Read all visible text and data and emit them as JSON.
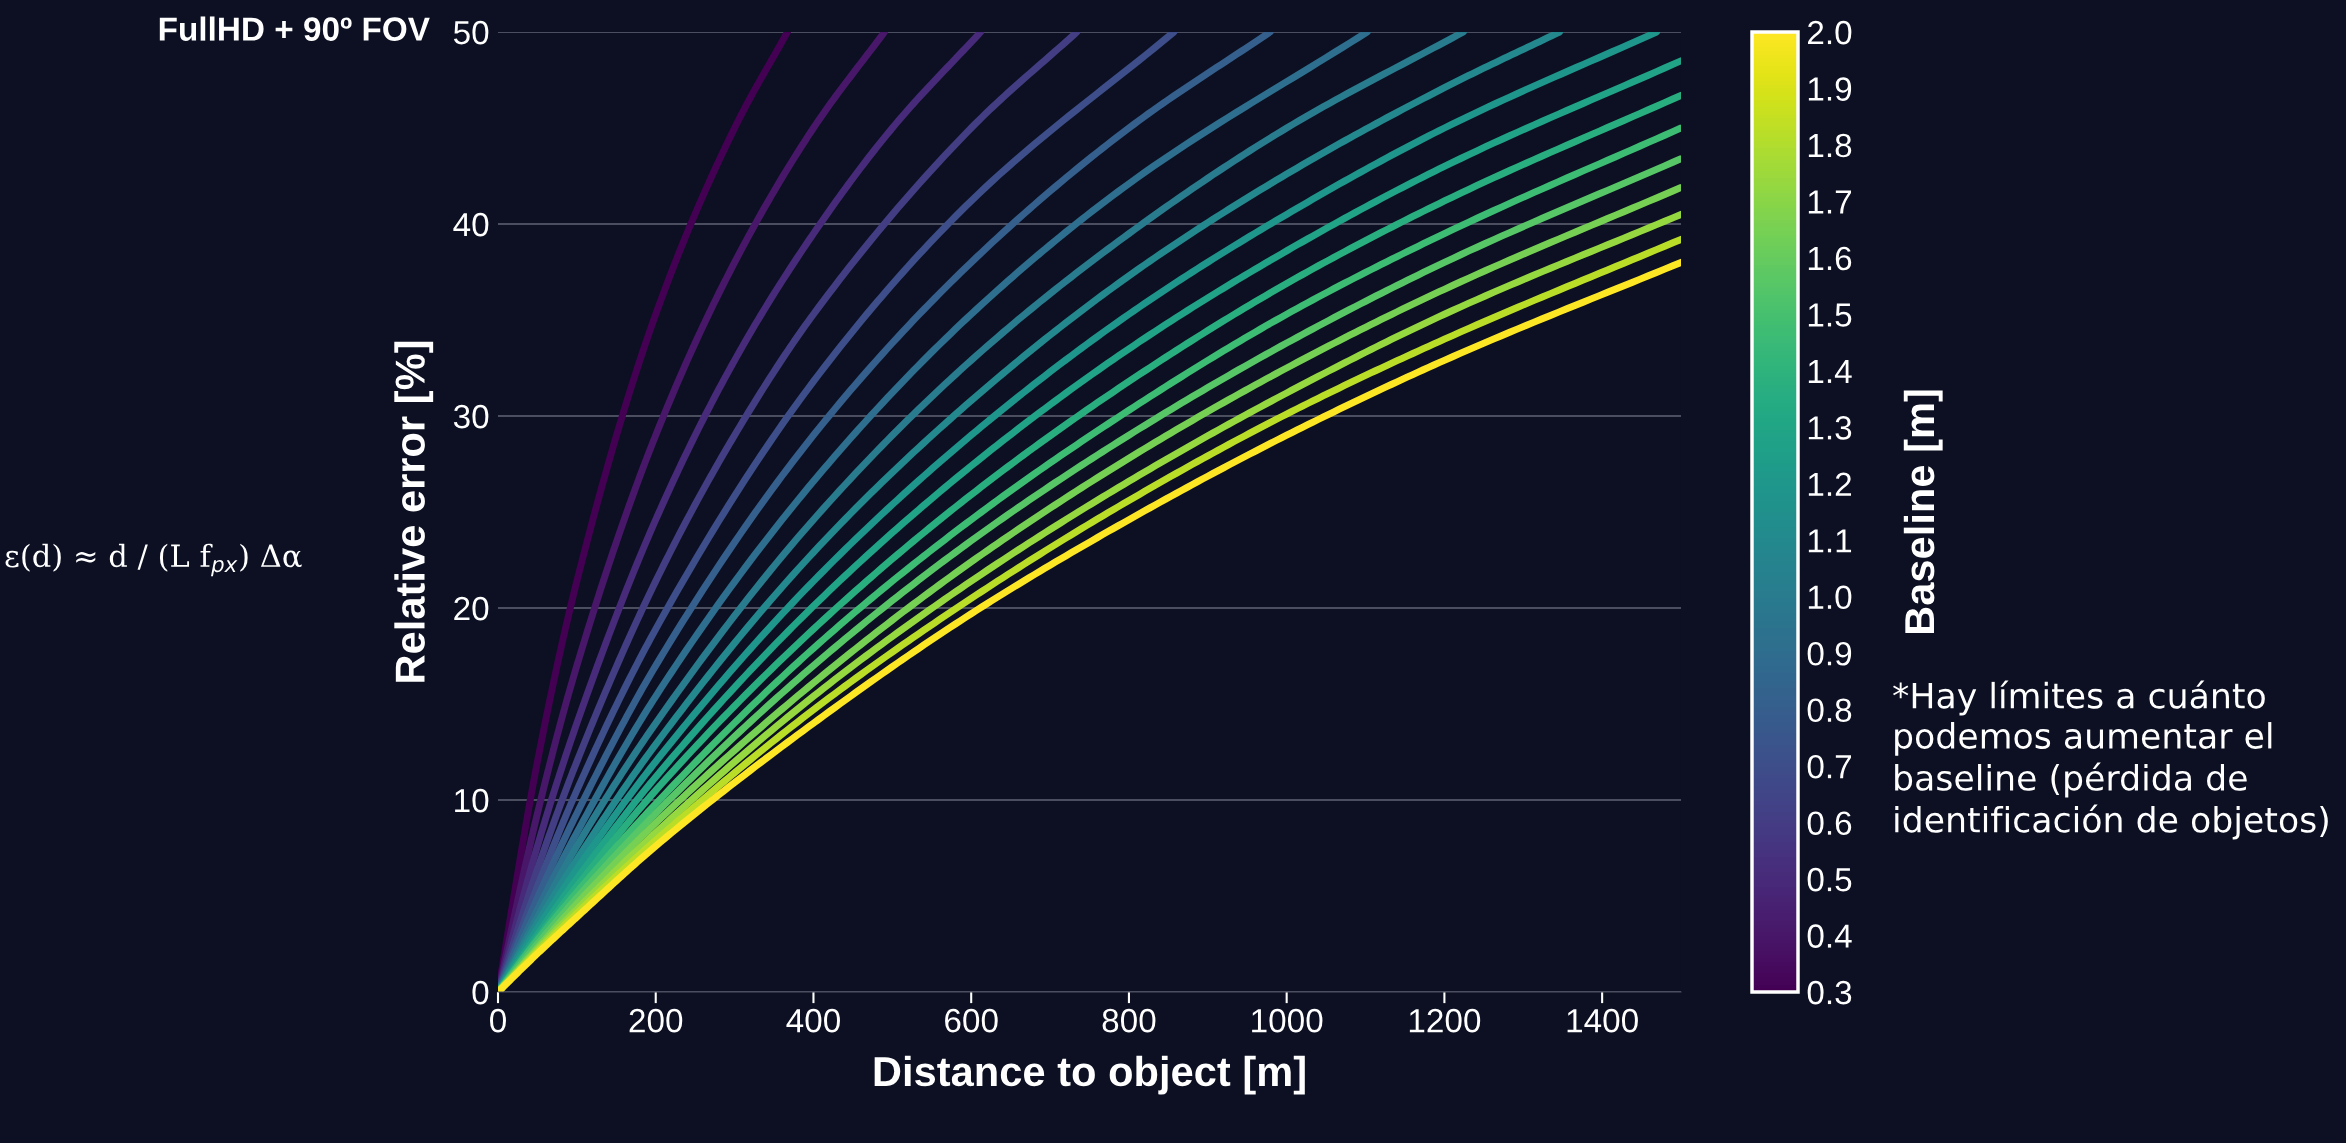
{
  "chart_data": {
    "type": "line",
    "title": "FullHD + 90º FOV",
    "xlabel": "Distance to object [m]",
    "ylabel": "Relative error [%]",
    "clabel": "Baseline [m]",
    "annotations": [
      "ε(d) ≈ d / (L f$_{px}$) Δα",
      "*Hay límites a cuánto\npodemos aumentar el\nbaseline (pérdida de\nidentificación de objetos)"
    ],
    "xlim": [
      0,
      1500
    ],
    "xticks": [
      0,
      200,
      400,
      600,
      800,
      1000,
      1200,
      1400
    ],
    "ylim": [
      0,
      50
    ],
    "yticks": [
      0,
      10,
      20,
      30,
      40,
      50
    ],
    "clim": [
      0.3,
      2.0
    ],
    "cticks": [
      0.3,
      0.4,
      0.5,
      0.6,
      0.7,
      0.8,
      0.9,
      {
        "value": 1.0,
        "label": "1.0"
      },
      1.1,
      1.2,
      1.3,
      1.4,
      1.5,
      1.6,
      1.7,
      1.8,
      1.9,
      {
        "value": 2.0,
        "label": "2.0"
      }
    ],
    "grid": "y",
    "marker": "none",
    "line_style": "solid",
    "series": [
      {
        "color": "#440154",
        "x": [
          0,
          50,
          100,
          200,
          300,
          367
        ],
        "values": [
          0,
          12.0,
          21.4,
          35.3,
          45.0,
          50
        ]
      },
      {
        "color": "#481769",
        "x": [
          0,
          50,
          100,
          200,
          300,
          400,
          490
        ],
        "values": [
          0,
          9.3,
          17.0,
          29.0,
          38.0,
          45.0,
          50
        ]
      },
      {
        "color": "#472a7a",
        "x": [
          0,
          50,
          100,
          200,
          300,
          400,
          500,
          612
        ],
        "values": [
          0,
          7.6,
          14.0,
          24.6,
          32.9,
          39.5,
          45.0,
          50
        ]
      },
      {
        "color": "#433d84",
        "x": [
          0,
          50,
          100,
          200,
          300,
          400,
          600,
          734
        ],
        "values": [
          0,
          6.4,
          12.0,
          21.4,
          29.0,
          35.3,
          45.0,
          50
        ]
      },
      {
        "color": "#3d4e8a",
        "x": [
          0,
          50,
          100,
          200,
          400,
          600,
          857
        ],
        "values": [
          0,
          5.5,
          10.5,
          18.9,
          31.8,
          41.2,
          50
        ]
      },
      {
        "color": "#355f8d",
        "x": [
          0,
          50,
          100,
          200,
          400,
          600,
          800,
          979
        ],
        "values": [
          0,
          4.9,
          9.3,
          17.0,
          29.0,
          38.0,
          45.0,
          50
        ]
      },
      {
        "color": "#2e6e8e",
        "x": [
          0,
          50,
          100,
          200,
          400,
          600,
          800,
          1102
        ],
        "values": [
          0,
          4.3,
          8.3,
          15.4,
          26.6,
          35.3,
          42.1,
          50
        ]
      },
      {
        "color": "#297b8e",
        "x": [
          0,
          50,
          100,
          200,
          400,
          600,
          800,
          1000,
          1224
        ],
        "values": [
          0,
          3.9,
          7.6,
          14.0,
          24.6,
          32.9,
          39.5,
          45.0,
          50
        ]
      },
      {
        "color": "#23898e",
        "x": [
          0,
          50,
          100,
          200,
          400,
          600,
          800,
          1000,
          1200,
          1346
        ],
        "values": [
          0,
          3.6,
          6.9,
          12.9,
          22.9,
          30.8,
          37.3,
          42.6,
          47.1,
          50
        ]
      },
      {
        "color": "#1f968b",
        "x": [
          0,
          50,
          100,
          200,
          400,
          600,
          800,
          1000,
          1200,
          1469
        ],
        "values": [
          0,
          3.3,
          6.4,
          12.0,
          21.4,
          29.0,
          35.3,
          40.5,
          45.0,
          50
        ]
      },
      {
        "color": "#20a386",
        "x": [
          0,
          50,
          100,
          200,
          400,
          600,
          800,
          1000,
          1200,
          1500
        ],
        "values": [
          0,
          3.0,
          5.9,
          11.2,
          20.1,
          27.4,
          33.5,
          38.6,
          43.0,
          48.5
        ]
      },
      {
        "color": "#29af7f",
        "x": [
          0,
          50,
          100,
          200,
          400,
          600,
          800,
          1000,
          1200,
          1500
        ],
        "values": [
          0,
          2.8,
          5.5,
          10.5,
          18.9,
          25.9,
          31.8,
          36.9,
          41.2,
          46.7
        ]
      },
      {
        "color": "#3dbc74",
        "x": [
          0,
          50,
          100,
          200,
          400,
          600,
          800,
          1000,
          1200,
          1500
        ],
        "values": [
          0,
          2.7,
          5.2,
          9.8,
          17.9,
          24.6,
          30.3,
          35.3,
          39.5,
          45.0
        ]
      },
      {
        "color": "#56c667",
        "x": [
          0,
          50,
          100,
          200,
          400,
          600,
          800,
          1000,
          1200,
          1500
        ],
        "values": [
          0,
          2.5,
          4.9,
          9.3,
          17.0,
          23.5,
          29.0,
          33.8,
          38.0,
          43.4
        ]
      },
      {
        "color": "#75d054",
        "x": [
          0,
          50,
          100,
          200,
          400,
          600,
          800,
          1000,
          1200,
          1500
        ],
        "values": [
          0,
          2.3,
          4.6,
          8.8,
          16.1,
          22.4,
          27.8,
          32.5,
          36.6,
          41.9
        ]
      },
      {
        "color": "#95d840",
        "x": [
          0,
          50,
          100,
          200,
          400,
          600,
          800,
          1000,
          1200,
          1500
        ],
        "values": [
          0,
          2.2,
          4.3,
          8.3,
          15.4,
          21.4,
          26.6,
          31.2,
          35.3,
          40.5
        ]
      },
      {
        "color": "#bade28",
        "x": [
          0,
          50,
          100,
          200,
          400,
          600,
          800,
          1000,
          1200,
          1500
        ],
        "values": [
          0,
          2.1,
          4.1,
          7.9,
          14.7,
          20.5,
          25.6,
          30.1,
          34.0,
          39.2
        ]
      },
      {
        "color": "#fde725",
        "x": [
          0,
          50,
          100,
          200,
          400,
          600,
          800,
          1000,
          1200,
          1500
        ],
        "values": [
          0,
          2.0,
          3.9,
          7.6,
          14.0,
          19.7,
          24.6,
          29.0,
          32.9,
          38.0
        ]
      }
    ]
  }
}
